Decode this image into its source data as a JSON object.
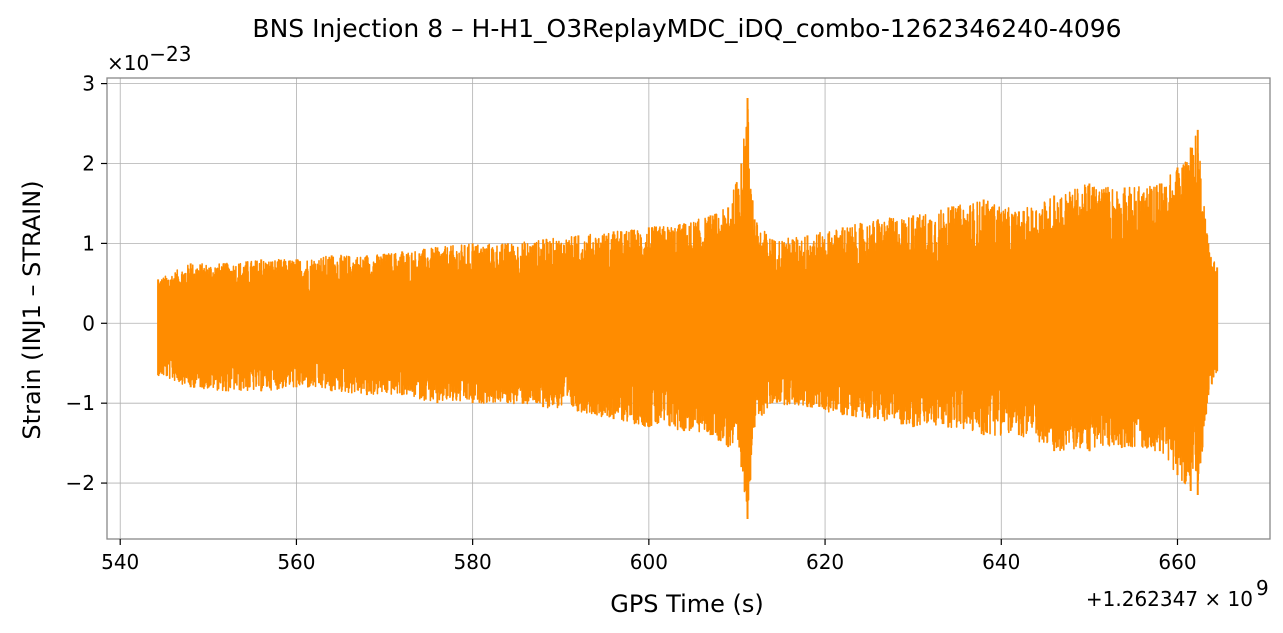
{
  "chart_data": {
    "type": "line",
    "title": "BNS Injection 8 – H-H1_O3ReplayMDC_iDQ_combo-1262346240-4096",
    "xlabel": "GPS Time (s)",
    "ylabel": "Strain (INJ1 – STRAIN)",
    "x_offset_label": "+1.262347 × 10",
    "x_offset_exp": "9",
    "y_scale_label": "×10",
    "y_scale_exp": "−23",
    "xlim": [
      538.5,
      670.5
    ],
    "ylim": [
      -2.7,
      3.07
    ],
    "x_ticks": [
      540,
      560,
      580,
      600,
      620,
      640,
      660
    ],
    "x_tick_labels": [
      "540",
      "560",
      "580",
      "600",
      "620",
      "640",
      "660"
    ],
    "y_ticks": [
      -2,
      -1,
      0,
      1,
      2,
      3
    ],
    "y_tick_labels": [
      "−2",
      "−1",
      "0",
      "1",
      "2",
      "3"
    ],
    "grid": true,
    "series": [
      {
        "color": "#ff8c00",
        "x_range": [
          544.3,
          664.5
        ],
        "envelope": [
          [
            544.3,
            0.55,
            -0.65
          ],
          [
            548,
            0.75,
            -0.8
          ],
          [
            552,
            0.75,
            -0.85
          ],
          [
            556,
            0.8,
            -0.85
          ],
          [
            560,
            0.8,
            -0.8
          ],
          [
            564,
            0.85,
            -0.85
          ],
          [
            568,
            0.85,
            -0.9
          ],
          [
            572,
            0.9,
            -0.9
          ],
          [
            576,
            0.95,
            -1.0
          ],
          [
            580,
            1.0,
            -1.0
          ],
          [
            584,
            1.0,
            -1.0
          ],
          [
            588,
            1.05,
            -1.05
          ],
          [
            592,
            1.1,
            -1.1
          ],
          [
            596,
            1.15,
            -1.2
          ],
          [
            600,
            1.2,
            -1.3
          ],
          [
            604,
            1.25,
            -1.35
          ],
          [
            607,
            1.35,
            -1.4
          ],
          [
            609,
            1.45,
            -1.55
          ],
          [
            610.5,
            2.0,
            -1.8
          ],
          [
            611.2,
            2.82,
            -2.45
          ],
          [
            612,
            1.3,
            -1.3
          ],
          [
            614,
            1.05,
            -1.0
          ],
          [
            618,
            1.1,
            -1.05
          ],
          [
            622,
            1.2,
            -1.15
          ],
          [
            626,
            1.3,
            -1.2
          ],
          [
            630,
            1.35,
            -1.3
          ],
          [
            634,
            1.45,
            -1.3
          ],
          [
            638,
            1.55,
            -1.4
          ],
          [
            642,
            1.4,
            -1.4
          ],
          [
            646,
            1.6,
            -1.6
          ],
          [
            650,
            1.75,
            -1.6
          ],
          [
            654,
            1.7,
            -1.55
          ],
          [
            658,
            1.75,
            -1.6
          ],
          [
            660,
            1.95,
            -1.9
          ],
          [
            661.5,
            2.2,
            -2.1
          ],
          [
            662.3,
            2.42,
            -2.15
          ],
          [
            663.5,
            1.0,
            -0.9
          ],
          [
            664.5,
            0.7,
            -0.6
          ]
        ]
      }
    ]
  }
}
